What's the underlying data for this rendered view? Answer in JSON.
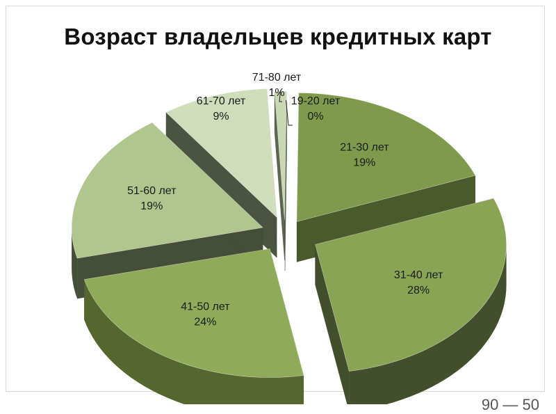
{
  "chart_data": {
    "type": "pie",
    "title": "Возраст владельцев кредитных карт",
    "categories": [
      "19-20 лет",
      "21-30 лет",
      "31-40 лет",
      "41-50 лет",
      "51-60 лет",
      "61-70 лет",
      "71-80 лет"
    ],
    "values": [
      0,
      19,
      28,
      24,
      19,
      9,
      1
    ],
    "value_labels": [
      "0%",
      "19%",
      "28%",
      "24%",
      "19%",
      "9%",
      "1%"
    ],
    "legend": "none",
    "colors": {
      "top": [
        "#a9b98f",
        "#7f9a4d",
        "#8aa455",
        "#8fab59",
        "#b0c68e",
        "#cfddbb",
        "#c9d8b2"
      ],
      "side": [
        "#5d6a4a",
        "#4a5a2c",
        "#434f2c",
        "#55672f",
        "#454e38",
        "#4b5440",
        "#5c6650"
      ]
    }
  },
  "footer_fragment": "90 — 50"
}
